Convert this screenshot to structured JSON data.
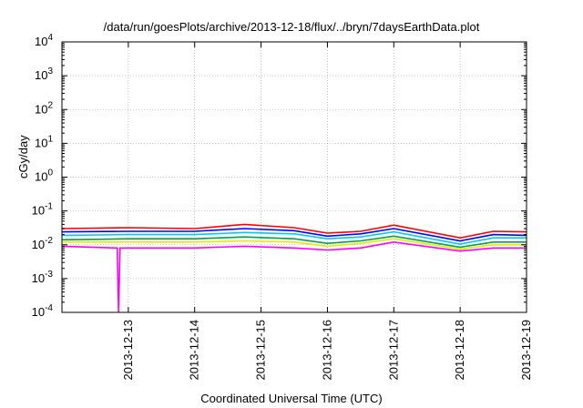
{
  "chart_data": {
    "type": "line",
    "title": "/data/run/goesPlots/archive/2013-12-18/flux/../bryn/7daysEarthData.plot",
    "xlabel": "Coordinated Universal Time (UTC)",
    "ylabel": "cGy/day",
    "yscale": "log",
    "ylim": [
      0.0001,
      10000
    ],
    "xlim": [
      "2013-12-12T00:00",
      "2013-12-19T00:00"
    ],
    "y_ticks": [
      {
        "base": "10",
        "exp": "-4",
        "value": 0.0001
      },
      {
        "base": "10",
        "exp": "-3",
        "value": 0.001
      },
      {
        "base": "10",
        "exp": "-2",
        "value": 0.01
      },
      {
        "base": "10",
        "exp": "-1",
        "value": 0.1
      },
      {
        "base": "10",
        "exp": "0",
        "value": 1
      },
      {
        "base": "10",
        "exp": "1",
        "value": 10
      },
      {
        "base": "10",
        "exp": "2",
        "value": 100
      },
      {
        "base": "10",
        "exp": "3",
        "value": 1000
      },
      {
        "base": "10",
        "exp": "4",
        "value": 10000
      }
    ],
    "x_ticks": [
      "2013-12-13",
      "2013-12-14",
      "2013-12-15",
      "2013-12-16",
      "2013-12-17",
      "2013-12-18",
      "2013-12-19"
    ],
    "grid": true,
    "legend": "none",
    "series": [
      {
        "color": "#ff0000",
        "points": [
          [
            "2013-12-12T00:00",
            0.03
          ],
          [
            "2013-12-13T00:00",
            0.032
          ],
          [
            "2013-12-14T00:00",
            0.03
          ],
          [
            "2013-12-14T18:00",
            0.04
          ],
          [
            "2013-12-15T12:00",
            0.032
          ],
          [
            "2013-12-16T00:00",
            0.022
          ],
          [
            "2013-12-16T12:00",
            0.025
          ],
          [
            "2013-12-17T00:00",
            0.038
          ],
          [
            "2013-12-18T00:00",
            0.016
          ],
          [
            "2013-12-18T12:00",
            0.025
          ],
          [
            "2013-12-19T00:00",
            0.024
          ]
        ]
      },
      {
        "color": "#0000ff",
        "points": [
          [
            "2013-12-12T00:00",
            0.024
          ],
          [
            "2013-12-13T00:00",
            0.025
          ],
          [
            "2013-12-14T00:00",
            0.025
          ],
          [
            "2013-12-14T18:00",
            0.03
          ],
          [
            "2013-12-15T12:00",
            0.026
          ],
          [
            "2013-12-16T00:00",
            0.018
          ],
          [
            "2013-12-16T12:00",
            0.021
          ],
          [
            "2013-12-17T00:00",
            0.03
          ],
          [
            "2013-12-18T00:00",
            0.013
          ],
          [
            "2013-12-18T12:00",
            0.02
          ],
          [
            "2013-12-19T00:00",
            0.019
          ]
        ]
      },
      {
        "color": "#00c8ff",
        "points": [
          [
            "2013-12-12T00:00",
            0.019
          ],
          [
            "2013-12-13T00:00",
            0.02
          ],
          [
            "2013-12-14T00:00",
            0.02
          ],
          [
            "2013-12-14T18:00",
            0.023
          ],
          [
            "2013-12-15T12:00",
            0.021
          ],
          [
            "2013-12-16T00:00",
            0.015
          ],
          [
            "2013-12-16T12:00",
            0.017
          ],
          [
            "2013-12-17T00:00",
            0.024
          ],
          [
            "2013-12-18T00:00",
            0.0105
          ],
          [
            "2013-12-18T12:00",
            0.016
          ],
          [
            "2013-12-19T00:00",
            0.016
          ]
        ]
      },
      {
        "color": "#00a050",
        "points": [
          [
            "2013-12-12T00:00",
            0.014
          ],
          [
            "2013-12-13T00:00",
            0.015
          ],
          [
            "2013-12-14T00:00",
            0.015
          ],
          [
            "2013-12-14T18:00",
            0.017
          ],
          [
            "2013-12-15T12:00",
            0.015
          ],
          [
            "2013-12-16T00:00",
            0.011
          ],
          [
            "2013-12-16T12:00",
            0.013
          ],
          [
            "2013-12-17T00:00",
            0.018
          ],
          [
            "2013-12-18T00:00",
            0.0085
          ],
          [
            "2013-12-18T12:00",
            0.012
          ],
          [
            "2013-12-19T00:00",
            0.012
          ]
        ]
      },
      {
        "color": "#e8e800",
        "points": [
          [
            "2013-12-12T00:00",
            0.012
          ],
          [
            "2013-12-13T00:00",
            0.012
          ],
          [
            "2013-12-14T00:00",
            0.012
          ],
          [
            "2013-12-14T18:00",
            0.013
          ],
          [
            "2013-12-15T12:00",
            0.012
          ],
          [
            "2013-12-16T00:00",
            0.009
          ],
          [
            "2013-12-16T12:00",
            0.011
          ],
          [
            "2013-12-17T00:00",
            0.015
          ],
          [
            "2013-12-18T00:00",
            0.0075
          ],
          [
            "2013-12-18T12:00",
            0.01
          ],
          [
            "2013-12-19T00:00",
            0.01
          ]
        ]
      },
      {
        "color": "#ff00ff",
        "points": [
          [
            "2013-12-12T00:00",
            0.009
          ],
          [
            "2013-12-12T20:00",
            0.008
          ],
          [
            "2013-12-12T20:30",
            0.0001
          ],
          [
            "2013-12-12T21:00",
            0.008
          ],
          [
            "2013-12-13T00:00",
            0.008
          ],
          [
            "2013-12-14T00:00",
            0.008
          ],
          [
            "2013-12-14T18:00",
            0.009
          ],
          [
            "2013-12-15T12:00",
            0.008
          ],
          [
            "2013-12-16T00:00",
            0.007
          ],
          [
            "2013-12-16T12:00",
            0.008
          ],
          [
            "2013-12-17T00:00",
            0.012
          ],
          [
            "2013-12-18T00:00",
            0.0065
          ],
          [
            "2013-12-18T12:00",
            0.008
          ],
          [
            "2013-12-19T00:00",
            0.008
          ]
        ]
      }
    ]
  }
}
